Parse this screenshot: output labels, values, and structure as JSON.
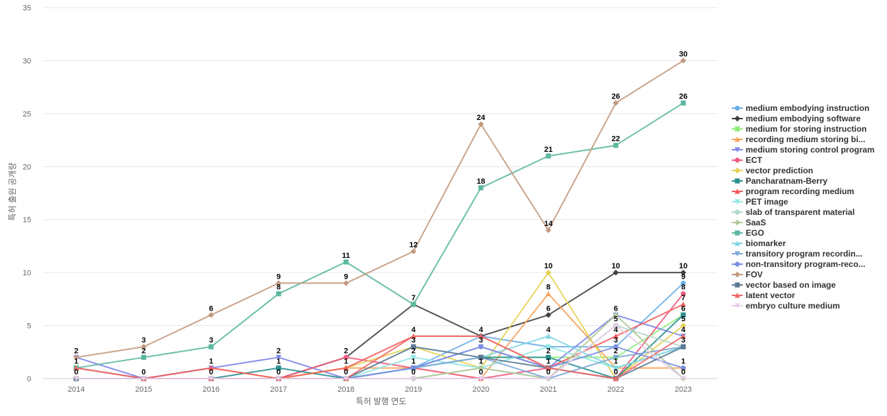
{
  "chart_data": {
    "type": "line",
    "xlabel": "특허 발행 연도",
    "ylabel": "특허 출원 공개량",
    "ylim": [
      0,
      35
    ],
    "yticks": [
      0,
      5,
      10,
      15,
      20,
      25,
      30,
      35
    ],
    "grid": true,
    "legend_position": "right",
    "x": [
      "2014",
      "2015",
      "2016",
      "2017",
      "2018",
      "2019",
      "2020",
      "2021",
      "2022",
      "2023"
    ],
    "series": [
      {
        "name": "medium embodying instruction",
        "color": "#6aaee8",
        "marker": "circle",
        "values": [
          0,
          0,
          0,
          0,
          0,
          1,
          4,
          3,
          3,
          9
        ]
      },
      {
        "name": "medium embodying software",
        "color": "#404040",
        "marker": "diamond",
        "values": [
          0,
          0,
          0,
          0,
          2,
          7,
          4,
          6,
          10,
          10
        ]
      },
      {
        "name": "medium for storing instruction",
        "color": "#90ed7d",
        "marker": "square",
        "values": [
          0,
          0,
          0,
          0,
          0,
          1,
          2,
          2,
          2,
          6
        ]
      },
      {
        "name": "recording medium storing bi...",
        "color": "#f7a35c",
        "marker": "triangle",
        "values": [
          0,
          0,
          1,
          0,
          1,
          1,
          0,
          8,
          1,
          1
        ]
      },
      {
        "name": "medium storing control program",
        "color": "#8085e9",
        "marker": "triangle-down",
        "values": [
          2,
          0,
          1,
          2,
          0,
          1,
          3,
          1,
          6,
          4
        ]
      },
      {
        "name": "ECT",
        "color": "#f15c80",
        "marker": "circle",
        "values": [
          0,
          0,
          0,
          0,
          2,
          1,
          0,
          1,
          0,
          8
        ]
      },
      {
        "name": "vector prediction",
        "color": "#e4d354",
        "marker": "diamond",
        "values": [
          0,
          0,
          0,
          0,
          1,
          3,
          1,
          10,
          0,
          5
        ]
      },
      {
        "name": "Pancharatnam-Berry",
        "color": "#2b908f",
        "marker": "square",
        "values": [
          1,
          0,
          0,
          1,
          0,
          1,
          2,
          2,
          0,
          6
        ]
      },
      {
        "name": "program recording medium",
        "color": "#f45b5b",
        "marker": "triangle",
        "values": [
          1,
          0,
          1,
          0,
          1,
          4,
          4,
          1,
          4,
          7
        ]
      },
      {
        "name": "PET image",
        "color": "#91e8e1",
        "marker": "triangle-down",
        "values": [
          0,
          0,
          0,
          0,
          0,
          2,
          1,
          3,
          1,
          3
        ]
      },
      {
        "name": "slab of transparent material",
        "color": "#b5d8c8",
        "marker": "circle",
        "values": [
          0,
          0,
          0,
          0,
          0,
          0,
          1,
          0,
          5,
          3
        ]
      },
      {
        "name": "SaaS",
        "color": "#b2c99a",
        "marker": "diamond",
        "values": [
          0,
          0,
          0,
          0,
          0,
          0,
          1,
          0,
          6,
          0
        ]
      },
      {
        "name": "EGO",
        "color": "#5cb8a0",
        "marker": "square",
        "values": [
          1,
          2,
          3,
          8,
          11,
          7,
          18,
          21,
          22,
          26
        ]
      },
      {
        "name": "biomarker",
        "color": "#7fd6e0",
        "marker": "triangle",
        "values": [
          0,
          0,
          0,
          0,
          0,
          1,
          2,
          4,
          1,
          3
        ]
      },
      {
        "name": "transitory program recordin...",
        "color": "#7ea7d8",
        "marker": "triangle-down",
        "values": [
          0,
          0,
          0,
          0,
          0,
          1,
          2,
          0,
          2,
          3
        ]
      },
      {
        "name": "non-transitory program-reco...",
        "color": "#7b8fe0",
        "marker": "circle",
        "values": [
          0,
          0,
          0,
          0,
          0,
          1,
          3,
          1,
          3,
          1
        ]
      },
      {
        "name": "FOV",
        "color": "#c49a80",
        "marker": "diamond",
        "values": [
          2,
          3,
          6,
          9,
          9,
          12,
          24,
          14,
          26,
          30
        ]
      },
      {
        "name": "vector based on image",
        "color": "#5a7a94",
        "marker": "square",
        "values": [
          0,
          0,
          0,
          0,
          0,
          3,
          2,
          1,
          0,
          3
        ]
      },
      {
        "name": "latent vector",
        "color": "#f06a6a",
        "marker": "triangle",
        "values": [
          1,
          0,
          0,
          0,
          0,
          4,
          4,
          1,
          0,
          4
        ]
      },
      {
        "name": "embryo culture medium",
        "color": "#e6cde8",
        "marker": "triangle-down",
        "values": [
          0,
          0,
          0,
          0,
          0,
          0,
          0,
          0,
          5,
          0
        ]
      }
    ],
    "data_labels": [
      {
        "x": "2014",
        "text": "2",
        "value": 2
      },
      {
        "x": "2014",
        "text": "1",
        "value": 1
      },
      {
        "x": "2014",
        "text": "0",
        "value": 0
      },
      {
        "x": "2015",
        "text": "3",
        "value": 3
      },
      {
        "x": "2015",
        "text": "2",
        "value": 2
      },
      {
        "x": "2015",
        "text": "0",
        "value": 0
      },
      {
        "x": "2016",
        "text": "6",
        "value": 6
      },
      {
        "x": "2016",
        "text": "3",
        "value": 3
      },
      {
        "x": "2016",
        "text": "1",
        "value": 1
      },
      {
        "x": "2016",
        "text": "0",
        "value": 0
      },
      {
        "x": "2017",
        "text": "9",
        "value": 9
      },
      {
        "x": "2017",
        "text": "8",
        "value": 8
      },
      {
        "x": "2017",
        "text": "2",
        "value": 2
      },
      {
        "x": "2017",
        "text": "1",
        "value": 1
      },
      {
        "x": "2017",
        "text": "0",
        "value": 0
      },
      {
        "x": "2018",
        "text": "11",
        "value": 11
      },
      {
        "x": "2018",
        "text": "9",
        "value": 9
      },
      {
        "x": "2018",
        "text": "2",
        "value": 2
      },
      {
        "x": "2018",
        "text": "1",
        "value": 1
      },
      {
        "x": "2018",
        "text": "0",
        "value": 0
      },
      {
        "x": "2019",
        "text": "12",
        "value": 12
      },
      {
        "x": "2019",
        "text": "7",
        "value": 7
      },
      {
        "x": "2019",
        "text": "4",
        "value": 4
      },
      {
        "x": "2019",
        "text": "3",
        "value": 3
      },
      {
        "x": "2019",
        "text": "2",
        "value": 2
      },
      {
        "x": "2019",
        "text": "1",
        "value": 1
      },
      {
        "x": "2019",
        "text": "0",
        "value": 0
      },
      {
        "x": "2020",
        "text": "24",
        "value": 24
      },
      {
        "x": "2020",
        "text": "18",
        "value": 18
      },
      {
        "x": "2020",
        "text": "4",
        "value": 4
      },
      {
        "x": "2020",
        "text": "3",
        "value": 3
      },
      {
        "x": "2020",
        "text": "1",
        "value": 1
      },
      {
        "x": "2020",
        "text": "0",
        "value": 0
      },
      {
        "x": "2021",
        "text": "21",
        "value": 21
      },
      {
        "x": "2021",
        "text": "14",
        "value": 14
      },
      {
        "x": "2021",
        "text": "10",
        "value": 10
      },
      {
        "x": "2021",
        "text": "8",
        "value": 8
      },
      {
        "x": "2021",
        "text": "6",
        "value": 6
      },
      {
        "x": "2021",
        "text": "4",
        "value": 4
      },
      {
        "x": "2021",
        "text": "2",
        "value": 2
      },
      {
        "x": "2021",
        "text": "1",
        "value": 1
      },
      {
        "x": "2021",
        "text": "0",
        "value": 0
      },
      {
        "x": "2022",
        "text": "26",
        "value": 26
      },
      {
        "x": "2022",
        "text": "22",
        "value": 22
      },
      {
        "x": "2022",
        "text": "10",
        "value": 10
      },
      {
        "x": "2022",
        "text": "6",
        "value": 6
      },
      {
        "x": "2022",
        "text": "5",
        "value": 5
      },
      {
        "x": "2022",
        "text": "4",
        "value": 4
      },
      {
        "x": "2022",
        "text": "3",
        "value": 3
      },
      {
        "x": "2022",
        "text": "2",
        "value": 2
      },
      {
        "x": "2022",
        "text": "1",
        "value": 1
      },
      {
        "x": "2022",
        "text": "0",
        "value": 0
      },
      {
        "x": "2023",
        "text": "30",
        "value": 30
      },
      {
        "x": "2023",
        "text": "26",
        "value": 26
      },
      {
        "x": "2023",
        "text": "10",
        "value": 10
      },
      {
        "x": "2023",
        "text": "9",
        "value": 9
      },
      {
        "x": "2023",
        "text": "8",
        "value": 8
      },
      {
        "x": "2023",
        "text": "7",
        "value": 7
      },
      {
        "x": "2023",
        "text": "6",
        "value": 6
      },
      {
        "x": "2023",
        "text": "5",
        "value": 5
      },
      {
        "x": "2023",
        "text": "4",
        "value": 4
      },
      {
        "x": "2023",
        "text": "3",
        "value": 3
      },
      {
        "x": "2023",
        "text": "1",
        "value": 1
      },
      {
        "x": "2023",
        "text": "0",
        "value": 0
      }
    ]
  }
}
